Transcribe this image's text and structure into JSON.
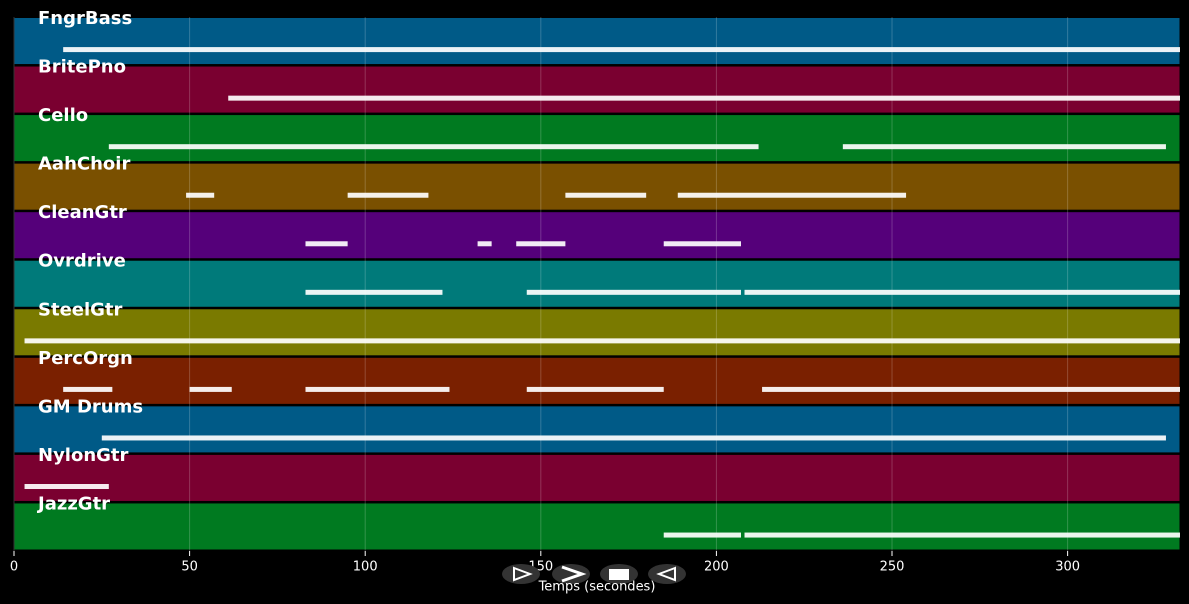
{
  "chart_data": {
    "type": "pianoroll",
    "x_label": "Temps (secondes)",
    "xlim": [
      0,
      332
    ],
    "xticks": [
      0,
      50,
      100,
      150,
      200,
      250,
      300
    ],
    "grid": true,
    "tracks": [
      {
        "name": "FngrBass",
        "color": "#005a87",
        "segments": [
          [
            14,
            332
          ]
        ]
      },
      {
        "name": "BritePno",
        "color": "#7a0030",
        "segments": [
          [
            61,
            332
          ]
        ]
      },
      {
        "name": "Cello",
        "color": "#007a20",
        "segments": [
          [
            27,
            212
          ],
          [
            236,
            328
          ]
        ]
      },
      {
        "name": "AahChoir",
        "color": "#7a5000",
        "segments": [
          [
            49,
            57
          ],
          [
            95,
            118
          ],
          [
            157,
            180
          ],
          [
            189,
            254
          ]
        ]
      },
      {
        "name": "CleanGtr",
        "color": "#55007a",
        "segments": [
          [
            83,
            95
          ],
          [
            132,
            136
          ],
          [
            143,
            157
          ],
          [
            185,
            207
          ]
        ]
      },
      {
        "name": "Ovrdrive",
        "color": "#007a7a",
        "segments": [
          [
            83,
            122
          ],
          [
            146,
            207
          ],
          [
            208,
            332
          ]
        ]
      },
      {
        "name": "SteelGtr",
        "color": "#7a7a00",
        "segments": [
          [
            3,
            332
          ]
        ]
      },
      {
        "name": "PercOrgn",
        "color": "#7a2000",
        "segments": [
          [
            14,
            28
          ],
          [
            50,
            62
          ],
          [
            83,
            124
          ],
          [
            146,
            185
          ],
          [
            213,
            332
          ]
        ]
      },
      {
        "name": "GM Drums",
        "color": "#005a87",
        "segments": [
          [
            25,
            328
          ]
        ]
      },
      {
        "name": "NylonGtr",
        "color": "#7a0030",
        "segments": [
          [
            3,
            27
          ]
        ]
      },
      {
        "name": "JazzGtr",
        "color": "#007a20",
        "segments": [
          [
            185,
            207
          ],
          [
            208,
            332
          ]
        ]
      }
    ]
  }
}
